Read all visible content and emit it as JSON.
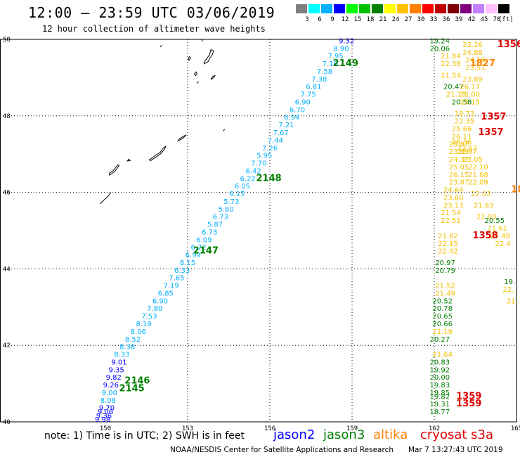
{
  "title": "12:00 – 23:59 UTC 03/06/2019",
  "subtitle": "12 hour collection of altimeter wave heights",
  "legend": {
    "unit": "(ft)",
    "entries": [
      {
        "label": "3",
        "color": "#7f7f7f"
      },
      {
        "label": "6",
        "color": "#00ffff"
      },
      {
        "label": "9",
        "color": "#00b0ff"
      },
      {
        "label": "12",
        "color": "#0000ff"
      },
      {
        "label": "15",
        "color": "#00ff00"
      },
      {
        "label": "18",
        "color": "#00c000"
      },
      {
        "label": "21",
        "color": "#008000"
      },
      {
        "label": "24",
        "color": "#ffff00"
      },
      {
        "label": "27",
        "color": "#ffc000"
      },
      {
        "label": "30",
        "color": "#ff8000"
      },
      {
        "label": "33",
        "color": "#ff0000"
      },
      {
        "label": "36",
        "color": "#c00000"
      },
      {
        "label": "39",
        "color": "#800000"
      },
      {
        "label": "42",
        "color": "#800080"
      },
      {
        "label": "45",
        "color": "#c080ff"
      },
      {
        "label": "70",
        "color": "#ffc0ff"
      },
      {
        "label": "",
        "color": "#000000"
      }
    ]
  },
  "axes": {
    "lon_ticks": [
      "150",
      "153",
      "156",
      "159",
      "162",
      "165"
    ],
    "lat_ticks": [
      "50",
      "48",
      "46",
      "44",
      "42",
      "40"
    ]
  },
  "footer": {
    "note": "note:  1) Time is in UTC;  2) SWH is in feet",
    "satellites": [
      {
        "name": "jason2",
        "color": "#0000ff"
      },
      {
        "name": "jason3",
        "color": "#008000"
      },
      {
        "name": "altika",
        "color": "#ff8000"
      },
      {
        "name": "cryosat s3a",
        "color": "#e00000"
      }
    ],
    "credit": "NOAA/NESDIS Center for Satellite Applications and Research",
    "timestamp": "Mar  7 13:27:43 UTC 2019"
  },
  "map_data": {
    "lon_range": [
      150,
      165
    ],
    "lat_range": [
      40,
      50
    ],
    "track_labels": [
      {
        "text": "2145",
        "lon": 150.5,
        "lat": 40.8,
        "color": "#008000"
      },
      {
        "text": "2146",
        "lon": 150.7,
        "lat": 41.0,
        "color": "#008000"
      },
      {
        "text": "2147",
        "lon": 153.2,
        "lat": 44.4,
        "color": "#008000"
      },
      {
        "text": "2148",
        "lon": 155.5,
        "lat": 46.3,
        "color": "#008000"
      },
      {
        "text": "2149",
        "lon": 158.3,
        "lat": 49.3,
        "color": "#008000"
      },
      {
        "text": "1356",
        "lon": 164.3,
        "lat": 49.8,
        "color": "#e00000"
      },
      {
        "text": "1357",
        "lon": 163.7,
        "lat": 47.9,
        "color": "#e00000"
      },
      {
        "text": "1357",
        "lon": 163.6,
        "lat": 47.5,
        "color": "#e00000"
      },
      {
        "text": "1358",
        "lon": 163.4,
        "lat": 44.8,
        "color": "#e00000"
      },
      {
        "text": "1359",
        "lon": 162.8,
        "lat": 40.6,
        "color": "#e00000"
      },
      {
        "text": "1359",
        "lon": 162.8,
        "lat": 40.4,
        "color": "#e00000"
      },
      {
        "text": "1827",
        "lon": 163.3,
        "lat": 49.3,
        "color": "#ff8000"
      },
      {
        "text": "18",
        "lon": 164.8,
        "lat": 46.0,
        "color": "#ff8000"
      }
    ],
    "tracks": [
      {
        "satellite": "jason3-2149",
        "color": "#00b0ff",
        "points": [
          {
            "lon": 158.8,
            "lat": 49.9,
            "v": "9.32",
            "c": "#0000ff"
          },
          {
            "lon": 158.6,
            "lat": 49.7,
            "v": "8.90"
          },
          {
            "lon": 158.4,
            "lat": 49.5,
            "v": "7.95"
          },
          {
            "lon": 158.2,
            "lat": 49.3,
            "v": "7.10"
          },
          {
            "lon": 158.0,
            "lat": 49.1,
            "v": "7.58"
          },
          {
            "lon": 157.8,
            "lat": 48.9,
            "v": "7.38"
          },
          {
            "lon": 157.6,
            "lat": 48.7,
            "v": "6.81"
          },
          {
            "lon": 157.4,
            "lat": 48.5,
            "v": "7.75"
          },
          {
            "lon": 157.2,
            "lat": 48.3,
            "v": "6.90"
          },
          {
            "lon": 157.0,
            "lat": 48.1,
            "v": "6.70"
          },
          {
            "lon": 156.8,
            "lat": 47.9,
            "v": "6.94"
          },
          {
            "lon": 156.6,
            "lat": 47.7,
            "v": "7.21"
          },
          {
            "lon": 156.4,
            "lat": 47.5,
            "v": "7.67"
          },
          {
            "lon": 156.2,
            "lat": 47.3,
            "v": "7.44"
          },
          {
            "lon": 156.0,
            "lat": 47.1,
            "v": "7.26"
          },
          {
            "lon": 155.8,
            "lat": 46.9,
            "v": "5.95"
          },
          {
            "lon": 155.6,
            "lat": 46.7,
            "v": "7.70"
          },
          {
            "lon": 155.4,
            "lat": 46.5,
            "v": "6.42"
          },
          {
            "lon": 155.2,
            "lat": 46.3,
            "v": "6.22"
          },
          {
            "lon": 155.0,
            "lat": 46.1,
            "v": "6.05"
          },
          {
            "lon": 154.8,
            "lat": 45.9,
            "v": "6.15"
          },
          {
            "lon": 154.6,
            "lat": 45.7,
            "v": "5.73"
          },
          {
            "lon": 154.4,
            "lat": 45.5,
            "v": "5.80"
          },
          {
            "lon": 154.2,
            "lat": 45.3,
            "v": "6.73"
          },
          {
            "lon": 154.0,
            "lat": 45.1,
            "v": "5.87"
          },
          {
            "lon": 153.8,
            "lat": 44.9,
            "v": "6.73"
          },
          {
            "lon": 153.6,
            "lat": 44.7,
            "v": "6.09"
          },
          {
            "lon": 153.4,
            "lat": 44.5,
            "v": "6.72"
          },
          {
            "lon": 153.2,
            "lat": 44.3,
            "v": "6.99"
          },
          {
            "lon": 153.0,
            "lat": 44.1,
            "v": "8.15"
          },
          {
            "lon": 152.8,
            "lat": 43.9,
            "v": "6.33"
          },
          {
            "lon": 152.6,
            "lat": 43.7,
            "v": "7.65"
          },
          {
            "lon": 152.4,
            "lat": 43.5,
            "v": "7.19"
          },
          {
            "lon": 152.2,
            "lat": 43.3,
            "v": "6.85"
          },
          {
            "lon": 152.0,
            "lat": 43.1,
            "v": "6.90"
          },
          {
            "lon": 151.8,
            "lat": 42.9,
            "v": "7.80"
          },
          {
            "lon": 151.6,
            "lat": 42.7,
            "v": "7.53"
          },
          {
            "lon": 151.4,
            "lat": 42.5,
            "v": "8.19"
          },
          {
            "lon": 151.2,
            "lat": 42.3,
            "v": "8.06"
          },
          {
            "lon": 151.0,
            "lat": 42.1,
            "v": "8.52"
          },
          {
            "lon": 150.8,
            "lat": 41.9,
            "v": "8.38"
          },
          {
            "lon": 150.6,
            "lat": 41.7,
            "v": "8.33"
          },
          {
            "lon": 150.5,
            "lat": 41.5,
            "v": "9.01",
            "c": "#0000ff"
          },
          {
            "lon": 150.4,
            "lat": 41.3,
            "v": "9.35",
            "c": "#0000ff"
          },
          {
            "lon": 150.3,
            "lat": 41.1,
            "v": "9.82",
            "c": "#0000ff"
          },
          {
            "lon": 150.2,
            "lat": 40.9,
            "v": "9.26",
            "c": "#0000ff"
          },
          {
            "lon": 150.15,
            "lat": 40.7,
            "v": "9.00"
          },
          {
            "lon": 150.1,
            "lat": 40.5,
            "v": "8.08"
          },
          {
            "lon": 150.05,
            "lat": 40.3,
            "v": "9.70",
            "c": "#0000ff"
          },
          {
            "lon": 150.0,
            "lat": 40.2,
            "v": "9.06",
            "c": "#0000ff"
          },
          {
            "lon": 149.95,
            "lat": 40.1,
            "v": "9.36",
            "c": "#0000ff"
          },
          {
            "lon": 149.9,
            "lat": 40.0,
            "v": "9.98",
            "c": "#0000ff"
          }
        ]
      },
      {
        "satellite": "jason3-east",
        "color": "#008000",
        "points": [
          {
            "lon": 162.2,
            "lat": 49.9,
            "v": "19.24"
          },
          {
            "lon": 162.2,
            "lat": 49.7,
            "v": "20.06"
          },
          {
            "lon": 162.7,
            "lat": 48.7,
            "v": "20.47"
          },
          {
            "lon": 163.0,
            "lat": 48.3,
            "v": "20.58"
          },
          {
            "lon": 162.4,
            "lat": 44.1,
            "v": "20.97"
          },
          {
            "lon": 162.4,
            "lat": 43.9,
            "v": "20.79"
          },
          {
            "lon": 162.3,
            "lat": 43.1,
            "v": "20.52"
          },
          {
            "lon": 162.3,
            "lat": 42.9,
            "v": "20.78"
          },
          {
            "lon": 162.3,
            "lat": 42.7,
            "v": "20.65"
          },
          {
            "lon": 162.3,
            "lat": 42.5,
            "v": "20.66"
          },
          {
            "lon": 162.2,
            "lat": 42.1,
            "v": "20.27"
          },
          {
            "lon": 162.2,
            "lat": 41.5,
            "v": "20.83"
          },
          {
            "lon": 162.2,
            "lat": 41.3,
            "v": "19.92"
          },
          {
            "lon": 162.2,
            "lat": 41.1,
            "v": "20.00"
          },
          {
            "lon": 162.2,
            "lat": 40.9,
            "v": "19.83"
          },
          {
            "lon": 162.2,
            "lat": 40.7,
            "v": "19.85"
          },
          {
            "lon": 162.2,
            "lat": 40.6,
            "v": "19.82"
          },
          {
            "lon": 162.2,
            "lat": 40.4,
            "v": "19.31"
          },
          {
            "lon": 162.2,
            "lat": 40.2,
            "v": "18.77"
          },
          {
            "lon": 164.75,
            "lat": 43.6,
            "v": "19."
          }
        ]
      },
      {
        "satellite": "cryosat-west",
        "color": "#f2c000",
        "points": [
          {
            "lon": 162.6,
            "lat": 49.5,
            "v": "21.84"
          },
          {
            "lon": 162.6,
            "lat": 49.3,
            "v": "22.38"
          },
          {
            "lon": 162.6,
            "lat": 49.0,
            "v": "21.54"
          },
          {
            "lon": 162.8,
            "lat": 48.5,
            "v": "21.13"
          },
          {
            "lon": 162.5,
            "lat": 44.6,
            "v": "22.15"
          },
          {
            "lon": 162.5,
            "lat": 44.4,
            "v": "22.42"
          },
          {
            "lon": 162.4,
            "lat": 43.5,
            "v": "21.52"
          },
          {
            "lon": 162.4,
            "lat": 43.3,
            "v": "21.49"
          },
          {
            "lon": 162.3,
            "lat": 42.3,
            "v": "21.19"
          },
          {
            "lon": 162.3,
            "lat": 41.7,
            "v": "21.64"
          },
          {
            "lon": 162.5,
            "lat": 44.8,
            "v": "21.82"
          },
          {
            "lon": 162.6,
            "lat": 45.2,
            "v": "22.51"
          },
          {
            "lon": 162.6,
            "lat": 45.4,
            "v": "21.54"
          },
          {
            "lon": 162.7,
            "lat": 45.6,
            "v": "23.13"
          },
          {
            "lon": 162.7,
            "lat": 45.8,
            "v": "23.60"
          },
          {
            "lon": 162.7,
            "lat": 46.0,
            "v": "24.64"
          },
          {
            "lon": 162.9,
            "lat": 46.2,
            "v": "23.87"
          },
          {
            "lon": 162.9,
            "lat": 46.4,
            "v": "26.15"
          },
          {
            "lon": 162.9,
            "lat": 46.6,
            "v": "25.05"
          },
          {
            "lon": 162.9,
            "lat": 46.8,
            "v": "24.37"
          },
          {
            "lon": 162.9,
            "lat": 47.0,
            "v": "23.69"
          },
          {
            "lon": 162.9,
            "lat": 47.2,
            "v": "25.87"
          },
          {
            "lon": 163.0,
            "lat": 47.4,
            "v": "26.11"
          },
          {
            "lon": 163.0,
            "lat": 47.6,
            "v": "25.66"
          },
          {
            "lon": 163.1,
            "lat": 47.8,
            "v": "22.35"
          },
          {
            "lon": 163.1,
            "lat": 48.0,
            "v": "18.73"
          }
        ]
      },
      {
        "satellite": "cryosat-east",
        "color": "#f2c000",
        "points": [
          {
            "lon": 163.4,
            "lat": 49.8,
            "v": "23.26"
          },
          {
            "lon": 163.4,
            "lat": 49.6,
            "v": "24.88"
          },
          {
            "lon": 163.5,
            "lat": 49.4,
            "v": "24.16"
          },
          {
            "lon": 163.5,
            "lat": 49.2,
            "v": "23.51"
          },
          {
            "lon": 163.4,
            "lat": 48.9,
            "v": "23.89"
          },
          {
            "lon": 163.3,
            "lat": 48.7,
            "v": "26.17"
          },
          {
            "lon": 163.3,
            "lat": 48.5,
            "v": "25.00"
          },
          {
            "lon": 163.3,
            "lat": 48.3,
            "v": "25.15"
          },
          {
            "lon": 163.2,
            "lat": 47.0,
            "v": "21.97"
          },
          {
            "lon": 163.4,
            "lat": 46.8,
            "v": "23.05"
          },
          {
            "lon": 163.6,
            "lat": 46.6,
            "v": "22.10"
          },
          {
            "lon": 163.6,
            "lat": 46.4,
            "v": "21.68"
          },
          {
            "lon": 163.6,
            "lat": 46.2,
            "v": "22.09"
          },
          {
            "lon": 163.7,
            "lat": 45.9,
            "v": "22.03"
          },
          {
            "lon": 163.8,
            "lat": 45.6,
            "v": "21.83"
          },
          {
            "lon": 163.9,
            "lat": 45.3,
            "v": "22.00"
          },
          {
            "lon": 164.3,
            "lat": 45.0,
            "v": "21.61"
          },
          {
            "lon": 164.4,
            "lat": 44.8,
            "v": "22.49"
          },
          {
            "lon": 164.5,
            "lat": 44.6,
            "v": "22.4"
          },
          {
            "lon": 164.8,
            "lat": 43.1,
            "v": "21"
          },
          {
            "lon": 164.7,
            "lat": 43.4,
            "v": "22."
          },
          {
            "lon": 163.0,
            "lat": 47.25,
            "v": "26.36"
          },
          {
            "lon": 163.2,
            "lat": 47.1,
            "v": "23.67"
          }
        ]
      },
      {
        "satellite": "jason3-extra",
        "color": "#008000",
        "points": [
          {
            "lon": 164.2,
            "lat": 45.2,
            "v": "20.55"
          }
        ]
      }
    ],
    "coastlines": [
      [
        [
          153.6,
          49.36
        ],
        [
          153.75,
          49.42
        ],
        [
          153.8,
          49.5
        ],
        [
          153.9,
          49.6
        ],
        [
          153.95,
          49.7
        ],
        [
          153.85,
          49.73
        ],
        [
          153.8,
          49.6
        ],
        [
          153.7,
          49.5
        ],
        [
          153.6,
          49.4
        ]
      ],
      [
        [
          153.05,
          49.45
        ],
        [
          153.1,
          49.5
        ],
        [
          153.07,
          49.55
        ],
        [
          153.02,
          49.5
        ]
      ],
      [
        [
          153.25,
          49.1
        ],
        [
          153.3,
          49.15
        ],
        [
          153.35,
          49.1
        ],
        [
          153.28,
          49.05
        ]
      ],
      [
        [
          153.85,
          48.95
        ],
        [
          153.95,
          49.0
        ],
        [
          154.0,
          49.05
        ],
        [
          153.93,
          49.04
        ],
        [
          153.87,
          48.98
        ]
      ],
      [
        [
          152.65,
          47.35
        ],
        [
          152.8,
          47.4
        ],
        [
          152.9,
          47.46
        ],
        [
          152.95,
          47.5
        ],
        [
          152.88,
          47.48
        ],
        [
          152.7,
          47.4
        ]
      ],
      [
        [
          151.6,
          46.85
        ],
        [
          151.8,
          46.95
        ],
        [
          152.0,
          47.05
        ],
        [
          152.1,
          47.15
        ],
        [
          152.2,
          47.2
        ],
        [
          152.15,
          47.12
        ],
        [
          152.0,
          47.0
        ],
        [
          151.8,
          46.9
        ],
        [
          151.65,
          46.83
        ]
      ],
      [
        [
          150.15,
          46.45
        ],
        [
          150.35,
          46.55
        ],
        [
          150.5,
          46.7
        ],
        [
          150.45,
          46.72
        ],
        [
          150.3,
          46.58
        ],
        [
          150.15,
          46.5
        ]
      ],
      [
        [
          150.8,
          46.82
        ],
        [
          150.85,
          46.87
        ],
        [
          150.9,
          46.83
        ]
      ],
      [
        [
          152.0,
          49.8
        ],
        [
          152.05,
          49.85
        ]
      ],
      [
        [
          153.5,
          50.0
        ],
        [
          153.55,
          49.95
        ]
      ],
      [
        [
          153.35,
          48.85
        ],
        [
          153.4,
          48.9
        ]
      ],
      [
        [
          154.3,
          47.6
        ],
        [
          154.35,
          47.65
        ]
      ]
    ]
  }
}
